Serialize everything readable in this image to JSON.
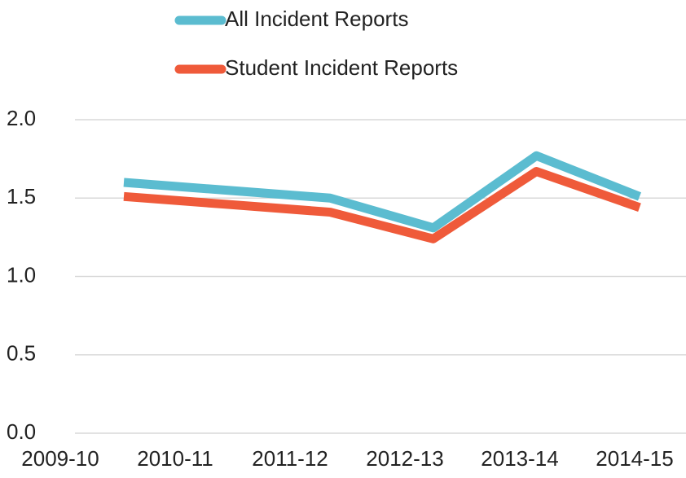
{
  "chart_data": {
    "type": "line",
    "categories": [
      "2009-10",
      "2010-11",
      "2011-12",
      "2012-13",
      "2013-14",
      "2014-15"
    ],
    "series": [
      {
        "name": "All Incident Reports",
        "color": "#5bbcd0",
        "values": [
          1.6,
          1.55,
          1.5,
          1.31,
          1.77,
          1.51
        ]
      },
      {
        "name": "Student Incident Reports",
        "color": "#ef5a3a",
        "values": [
          1.51,
          1.46,
          1.41,
          1.24,
          1.67,
          1.44
        ]
      }
    ],
    "ylim": [
      0,
      2
    ],
    "yticks": [
      {
        "value": 0,
        "label": "0.0"
      },
      0.5,
      {
        "value": 1,
        "label": "1.0"
      },
      1.5,
      {
        "value": 2,
        "label": "2.0"
      }
    ],
    "grid": true
  }
}
